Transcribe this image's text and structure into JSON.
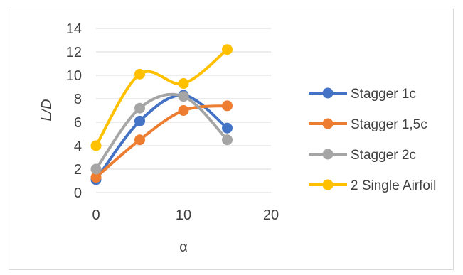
{
  "chart_data": {
    "type": "line",
    "title": "",
    "xlabel": "α",
    "ylabel": "L/D",
    "xlim": [
      0,
      20
    ],
    "ylim": [
      0,
      14
    ],
    "xticks": [
      0,
      10,
      20
    ],
    "yticks": [
      0,
      2,
      4,
      6,
      8,
      10,
      12,
      14
    ],
    "grid": "horizontal",
    "smooth": true,
    "markers": true,
    "legend_position": "right",
    "series": [
      {
        "name": "Stagger 1c",
        "color": "#4472C4",
        "x": [
          0,
          5,
          10,
          15
        ],
        "y": [
          1.1,
          6.1,
          8.3,
          5.5
        ]
      },
      {
        "name": "Stagger 1,5c",
        "color": "#ED7D31",
        "x": [
          0,
          5,
          10,
          15
        ],
        "y": [
          1.3,
          4.5,
          7.0,
          7.4
        ]
      },
      {
        "name": "Stagger 2c",
        "color": "#A5A5A5",
        "x": [
          0,
          5,
          10,
          15
        ],
        "y": [
          2.0,
          7.2,
          8.2,
          4.5
        ]
      },
      {
        "name": "2 Single Airfoil",
        "color": "#FFC000",
        "x": [
          0,
          5,
          10,
          15
        ],
        "y": [
          4.0,
          10.1,
          9.3,
          12.2
        ]
      }
    ]
  }
}
